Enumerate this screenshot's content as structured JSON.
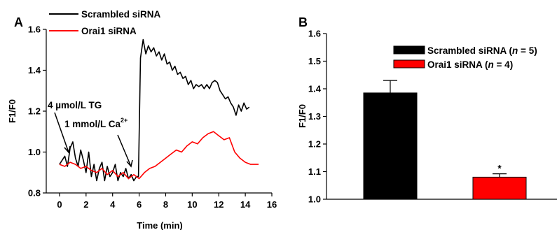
{
  "chart_data": [
    {
      "panel": "A",
      "type": "line",
      "xlabel": "Time (min)",
      "ylabel": "F1/F0",
      "xlim": [
        -1,
        16
      ],
      "ylim": [
        0.8,
        1.6
      ],
      "xticks": [
        "0",
        "2",
        "4",
        "6",
        "8",
        "10",
        "12",
        "14",
        "16"
      ],
      "yticks": [
        "0.8",
        "1.0",
        "1.2",
        "1.4",
        "1.6"
      ],
      "legend_placement": "top-left, above plot",
      "grid": false,
      "annotations": [
        {
          "text": "4 µmol/L TG",
          "x": 0.4,
          "y": 0.95
        },
        {
          "text_prefix": "1 mmol/L Ca",
          "superscript": "2+",
          "x": 5.4,
          "y": 0.87
        }
      ],
      "series": [
        {
          "name": "Scrambled siRNA",
          "color": "#000000",
          "x": [
            0,
            0.2,
            0.4,
            0.6,
            0.8,
            1.0,
            1.2,
            1.4,
            1.6,
            1.8,
            2.0,
            2.2,
            2.4,
            2.6,
            2.8,
            3.0,
            3.2,
            3.4,
            3.6,
            3.8,
            4.0,
            4.2,
            4.4,
            4.6,
            4.8,
            5.0,
            5.2,
            5.4,
            5.6,
            5.8,
            5.95,
            6.1,
            6.3,
            6.5,
            6.7,
            6.9,
            7.1,
            7.3,
            7.5,
            7.7,
            7.9,
            8.1,
            8.3,
            8.5,
            8.7,
            8.9,
            9.1,
            9.3,
            9.5,
            9.7,
            9.9,
            10.1,
            10.3,
            10.5,
            10.7,
            10.9,
            11.1,
            11.3,
            11.5,
            11.7,
            11.9,
            12.1,
            12.3,
            12.5,
            12.7,
            12.9,
            13.1,
            13.3,
            13.5,
            13.7,
            13.9,
            14.1,
            14.3
          ],
          "y": [
            0.94,
            0.96,
            0.98,
            0.93,
            1.02,
            1.05,
            0.97,
            0.93,
            1.01,
            0.96,
            0.9,
            1.0,
            0.88,
            0.94,
            0.86,
            0.92,
            0.95,
            0.86,
            0.93,
            0.88,
            0.9,
            0.94,
            0.86,
            0.9,
            0.88,
            0.92,
            0.87,
            0.89,
            0.86,
            0.88,
            0.88,
            1.46,
            1.55,
            1.48,
            1.52,
            1.49,
            1.51,
            1.47,
            1.49,
            1.45,
            1.48,
            1.43,
            1.44,
            1.4,
            1.42,
            1.38,
            1.39,
            1.36,
            1.37,
            1.33,
            1.35,
            1.31,
            1.33,
            1.32,
            1.33,
            1.31,
            1.33,
            1.31,
            1.34,
            1.35,
            1.34,
            1.3,
            1.28,
            1.26,
            1.27,
            1.24,
            1.22,
            1.18,
            1.23,
            1.2,
            1.24,
            1.21,
            1.22
          ]
        },
        {
          "name": "Orai1 siRNA",
          "color": "#ff0000",
          "x": [
            0,
            0.4,
            0.8,
            1.2,
            1.6,
            2.0,
            2.4,
            2.8,
            3.2,
            3.6,
            4.0,
            4.4,
            4.8,
            5.2,
            5.6,
            6.0,
            6.4,
            6.8,
            7.2,
            7.6,
            8.0,
            8.4,
            8.8,
            9.2,
            9.6,
            10.0,
            10.4,
            10.8,
            11.2,
            11.6,
            12.0,
            12.4,
            12.8,
            13.2,
            13.6,
            14.0,
            14.4,
            14.8,
            15.0
          ],
          "y": [
            0.94,
            0.93,
            0.95,
            0.94,
            0.92,
            0.93,
            0.91,
            0.9,
            0.92,
            0.89,
            0.91,
            0.88,
            0.9,
            0.87,
            0.89,
            0.87,
            0.9,
            0.92,
            0.93,
            0.95,
            0.97,
            0.99,
            1.01,
            1.0,
            1.03,
            1.05,
            1.04,
            1.07,
            1.09,
            1.1,
            1.08,
            1.06,
            1.07,
            1.0,
            0.97,
            0.95,
            0.94,
            0.94,
            0.94
          ]
        }
      ]
    },
    {
      "panel": "B",
      "type": "bar",
      "ylabel": "F1/F0",
      "ylim": [
        1.0,
        1.6
      ],
      "yticks": [
        "1.0",
        "1.1",
        "1.2",
        "1.3",
        "1.4",
        "1.5",
        "1.6"
      ],
      "grid": false,
      "legend_placement": "top-right",
      "series": [
        {
          "name": "Scrambled siRNA",
          "n": "5",
          "value": 1.385,
          "error": 0.045,
          "color": "#000000"
        },
        {
          "name": "Orai1 siRNA",
          "n": "4",
          "value": 1.08,
          "error": 0.012,
          "color": "#ff0000",
          "annotation": "*"
        }
      ]
    }
  ]
}
